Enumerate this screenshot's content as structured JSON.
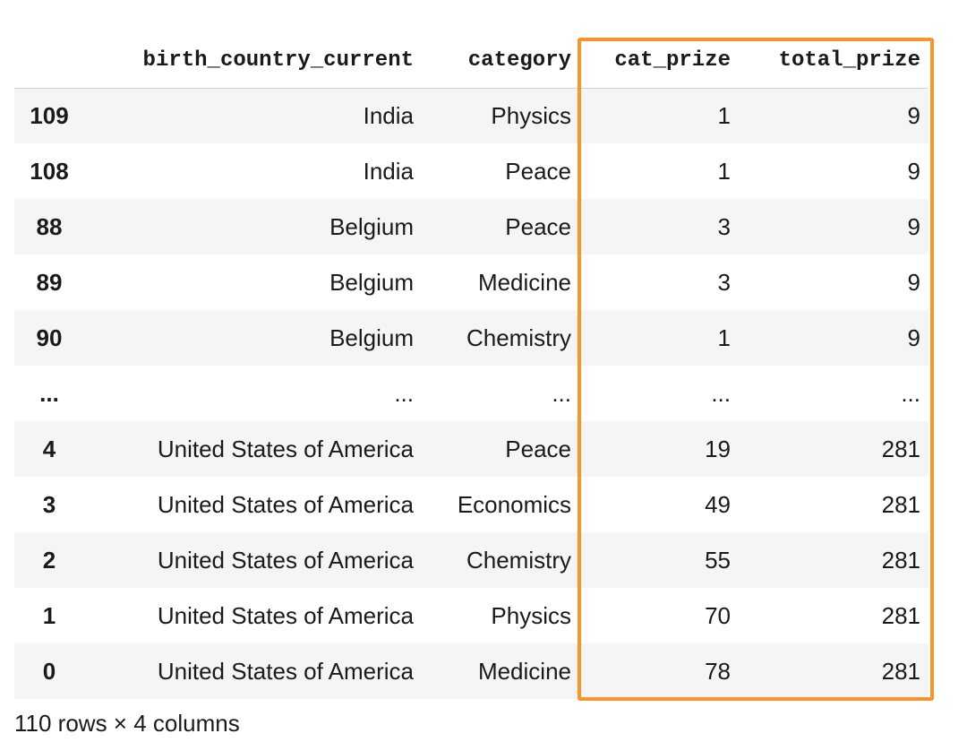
{
  "table": {
    "columns": [
      "",
      "birth_country_current",
      "category",
      "cat_prize",
      "total_prize"
    ],
    "rows": [
      {
        "index": "109",
        "birth_country_current": "India",
        "category": "Physics",
        "cat_prize": "1",
        "total_prize": "9"
      },
      {
        "index": "108",
        "birth_country_current": "India",
        "category": "Peace",
        "cat_prize": "1",
        "total_prize": "9"
      },
      {
        "index": "88",
        "birth_country_current": "Belgium",
        "category": "Peace",
        "cat_prize": "3",
        "total_prize": "9"
      },
      {
        "index": "89",
        "birth_country_current": "Belgium",
        "category": "Medicine",
        "cat_prize": "3",
        "total_prize": "9"
      },
      {
        "index": "90",
        "birth_country_current": "Belgium",
        "category": "Chemistry",
        "cat_prize": "1",
        "total_prize": "9"
      },
      {
        "index": "...",
        "birth_country_current": "...",
        "category": "...",
        "cat_prize": "...",
        "total_prize": "..."
      },
      {
        "index": "4",
        "birth_country_current": "United States of America",
        "category": "Peace",
        "cat_prize": "19",
        "total_prize": "281"
      },
      {
        "index": "3",
        "birth_country_current": "United States of America",
        "category": "Economics",
        "cat_prize": "49",
        "total_prize": "281"
      },
      {
        "index": "2",
        "birth_country_current": "United States of America",
        "category": "Chemistry",
        "cat_prize": "55",
        "total_prize": "281"
      },
      {
        "index": "1",
        "birth_country_current": "United States of America",
        "category": "Physics",
        "cat_prize": "70",
        "total_prize": "281"
      },
      {
        "index": "0",
        "birth_country_current": "United States of America",
        "category": "Medicine",
        "cat_prize": "78",
        "total_prize": "281"
      }
    ]
  },
  "shape_info": "110 rows × 4 columns",
  "highlight": {
    "color": "#f7952b",
    "columns": [
      "cat_prize",
      "total_prize"
    ]
  },
  "colors": {
    "row_stripe": "#f5f5f5",
    "text": "#1a1a1a"
  }
}
